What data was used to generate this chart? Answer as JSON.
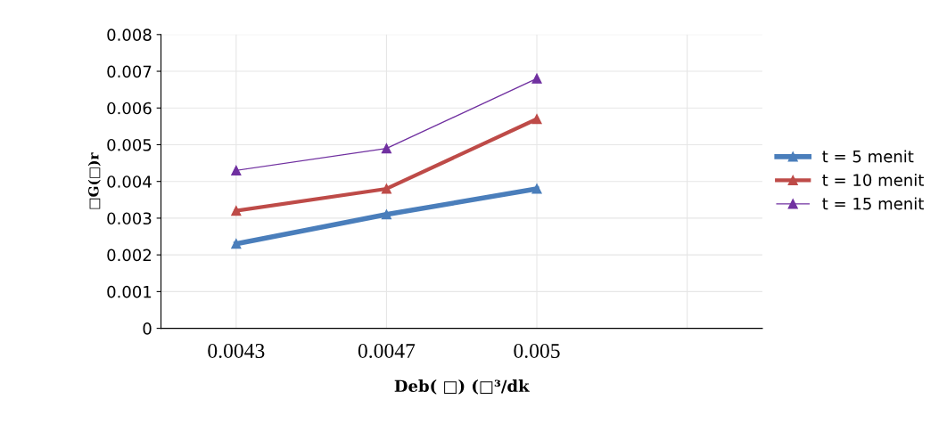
{
  "chart_data": {
    "type": "line",
    "xlabel": "Deb( □) (□³/dk",
    "ylabel": "□G(□)r",
    "categories": [
      "0.0043",
      "0.0047",
      "0.005",
      null
    ],
    "series": [
      {
        "name": "t = 5 menit",
        "color": "#4a7ebb",
        "values": [
          0.0023,
          0.0031,
          0.0038,
          null
        ]
      },
      {
        "name": "t = 10 menit",
        "color": "#be4b48",
        "values": [
          0.0032,
          0.0038,
          0.0057,
          null
        ]
      },
      {
        "name": "t = 15 menit",
        "color": "#7030a0",
        "values": [
          0.0043,
          0.0049,
          0.0068,
          null
        ]
      }
    ],
    "ylim": [
      0,
      0.008
    ],
    "yticks": [
      0,
      0.001,
      0.002,
      0.003,
      0.004,
      0.005,
      0.006,
      0.007,
      0.008
    ],
    "grid": true,
    "legend": "right",
    "marker": "triangle",
    "line_style": "solid"
  }
}
